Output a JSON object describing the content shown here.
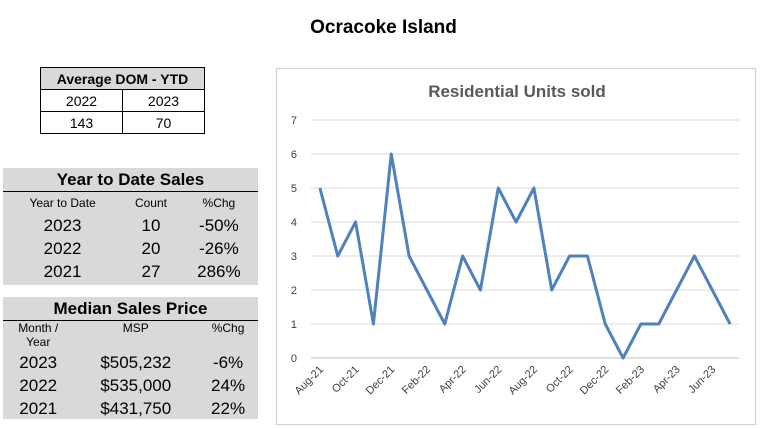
{
  "page": {
    "title": "Ocracoke Island"
  },
  "dom": {
    "header": "Average DOM - YTD",
    "years": [
      "2022",
      "2023"
    ],
    "values": [
      "143",
      "70"
    ]
  },
  "ytd": {
    "title": "Year to Date Sales",
    "columns": [
      "Year to Date",
      "Count",
      "%Chg"
    ],
    "rows": [
      {
        "year": "2023",
        "count": "10",
        "chg": "-50%"
      },
      {
        "year": "2022",
        "count": "20",
        "chg": "-26%"
      },
      {
        "year": "2021",
        "count": "27",
        "chg": "286%"
      }
    ]
  },
  "msp": {
    "title": "Median Sales Price",
    "columns": [
      "Month /\nYear",
      "MSP",
      "%Chg"
    ],
    "rows": [
      {
        "year": "2023",
        "price": "$505,232",
        "chg": "-6%"
      },
      {
        "year": "2022",
        "price": "$535,000",
        "chg": "24%"
      },
      {
        "year": "2021",
        "price": "$431,750",
        "chg": "22%"
      }
    ]
  },
  "chart_data": {
    "type": "line",
    "title": "Residential Units sold",
    "xlabel": "",
    "ylabel": "",
    "ylim": [
      0,
      7
    ],
    "yticks": [
      0,
      1,
      2,
      3,
      4,
      5,
      6,
      7
    ],
    "grid": true,
    "categories": [
      "Aug-21",
      "Sep-21",
      "Oct-21",
      "Nov-21",
      "Dec-21",
      "Jan-22",
      "Feb-22",
      "Mar-22",
      "Apr-22",
      "May-22",
      "Jun-22",
      "Jul-22",
      "Aug-22",
      "Sep-22",
      "Oct-22",
      "Nov-22",
      "Dec-22",
      "Jan-23",
      "Feb-23",
      "Mar-23",
      "Apr-23",
      "May-23",
      "Jun-23",
      "Jul-23"
    ],
    "tick_labels": [
      "Aug-21",
      "Oct-21",
      "Dec-21",
      "Feb-22",
      "Apr-22",
      "Jun-22",
      "Aug-22",
      "Oct-22",
      "Dec-22",
      "Feb-23",
      "Apr-23",
      "Jun-23"
    ],
    "series": [
      {
        "values": [
          5,
          3,
          4,
          1,
          6,
          3,
          2,
          1,
          3,
          2,
          5,
          4,
          5,
          2,
          3,
          3,
          1,
          0,
          1,
          1,
          2,
          3,
          2,
          1
        ]
      }
    ],
    "color": "#4f81bd"
  }
}
